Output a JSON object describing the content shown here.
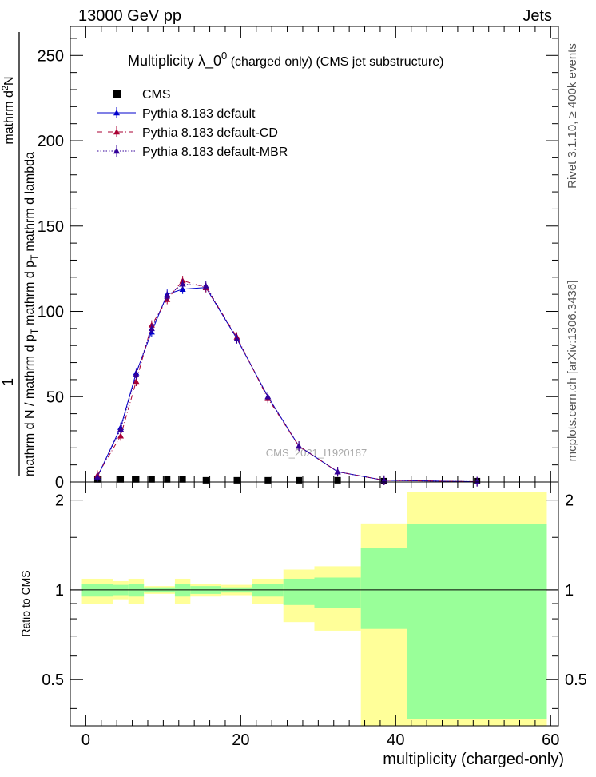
{
  "header": {
    "energy_label": "13000 GeV pp",
    "process_label": "Jets"
  },
  "side_labels": {
    "rivet": "Rivet 3.1.10, ≥ 400k events",
    "mcplots": "mcplots.cern.ch [arXiv:1306.3436]"
  },
  "watermark": "CMS_2021_I1920187",
  "chart_data": [
    {
      "type": "line",
      "panel": "main",
      "title_main": "Multiplicity  λ_0",
      "title_sup": "0",
      "title_rest": " (charged only) (CMS jet substructure)",
      "ylabel_num": "1",
      "ylabel_den_part1": "mathrm d N / mathrm d p",
      "ylabel_den_part2": "mathrm d p",
      "ylabel_den_part3": "mathrm d lambda",
      "ylabel_num_part1": "mathrm d",
      "ylabel_num_part2": "N",
      "ylabel_sub": "T",
      "ylabel_sup": "2",
      "xlim": [
        -2,
        61
      ],
      "ylim": [
        0,
        267
      ],
      "yticks": [
        0,
        50,
        100,
        150,
        200,
        250
      ],
      "ytick_labels": [
        "0",
        "50",
        "100",
        "150",
        "200",
        "250"
      ],
      "legend": [
        {
          "name": "CMS",
          "color": "#000000",
          "marker": "square",
          "line": "none"
        },
        {
          "name": "Pythia 8.183 default",
          "color": "#0000cc",
          "marker": "triangle",
          "line": "solid"
        },
        {
          "name": "Pythia 8.183 default-CD",
          "color": "#aa0033",
          "marker": "triangle",
          "line": "dashdot"
        },
        {
          "name": "Pythia 8.183 default-MBR",
          "color": "#330099",
          "marker": "triangle",
          "line": "dotted"
        }
      ],
      "series": [
        {
          "name": "CMS",
          "x": [
            1.5,
            4.5,
            6.5,
            8.5,
            10.5,
            12.5,
            15.5,
            19.5,
            23.5,
            27.5,
            32.5,
            38.5,
            50.5
          ],
          "y": [
            1.5,
            1.5,
            1.5,
            1.5,
            1.5,
            1.5,
            1.0,
            1.0,
            1.0,
            1.0,
            1.0,
            0.5,
            0.5
          ]
        },
        {
          "name": "Pythia 8.183 default",
          "x": [
            1.5,
            4.5,
            6.5,
            8.5,
            10.5,
            12.5,
            15.5,
            19.5,
            23.5,
            27.5,
            32.5,
            38.5,
            50.5
          ],
          "y": [
            3,
            32,
            64,
            88,
            110,
            113,
            114,
            84,
            50,
            21,
            6,
            1,
            0.2
          ]
        },
        {
          "name": "Pythia 8.183 default-CD",
          "x": [
            1.5,
            4.5,
            6.5,
            8.5,
            10.5,
            12.5,
            15.5,
            19.5,
            23.5,
            27.5,
            32.5,
            38.5,
            50.5
          ],
          "y": [
            4,
            27,
            59,
            92,
            107,
            118,
            114,
            85,
            49,
            21,
            6,
            1,
            0.2
          ]
        },
        {
          "name": "Pythia 8.183 default-MBR",
          "x": [
            1.5,
            4.5,
            6.5,
            8.5,
            10.5,
            12.5,
            15.5,
            19.5,
            23.5,
            27.5,
            32.5,
            38.5,
            50.5
          ],
          "y": [
            3,
            31,
            63,
            90,
            109,
            116,
            115,
            84,
            50,
            21,
            6,
            1,
            0.2
          ]
        }
      ]
    },
    {
      "type": "area",
      "panel": "ratio",
      "ylabel": "Ratio to CMS",
      "xlabel": "multiplicity (charged-only)",
      "xlim": [
        -2,
        61
      ],
      "ylim": [
        0.35,
        2.3
      ],
      "yticks": [
        0.5,
        1,
        2
      ],
      "ytick_labels": [
        "0.5",
        "1",
        "2"
      ],
      "xticks": [
        0,
        20,
        40,
        60
      ],
      "xtick_labels": [
        "0",
        "20",
        "40",
        "60"
      ],
      "bins": [
        {
          "lo": -0.5,
          "hi": 3.5,
          "yellow": [
            0.9,
            1.09
          ],
          "green": [
            0.95,
            1.05
          ]
        },
        {
          "lo": 3.5,
          "hi": 5.5,
          "yellow": [
            0.93,
            1.07
          ],
          "green": [
            0.96,
            1.04
          ]
        },
        {
          "lo": 5.5,
          "hi": 7.5,
          "yellow": [
            0.9,
            1.09
          ],
          "green": [
            0.95,
            1.05
          ]
        },
        {
          "lo": 7.5,
          "hi": 11.5,
          "yellow": [
            0.97,
            1.03
          ],
          "green": [
            0.98,
            1.02
          ]
        },
        {
          "lo": 11.5,
          "hi": 13.5,
          "yellow": [
            0.9,
            1.09
          ],
          "green": [
            0.95,
            1.05
          ]
        },
        {
          "lo": 13.5,
          "hi": 17.5,
          "yellow": [
            0.95,
            1.05
          ],
          "green": [
            0.97,
            1.03
          ]
        },
        {
          "lo": 17.5,
          "hi": 21.5,
          "yellow": [
            0.96,
            1.04
          ],
          "green": [
            0.98,
            1.02
          ]
        },
        {
          "lo": 21.5,
          "hi": 25.5,
          "yellow": [
            0.9,
            1.09
          ],
          "green": [
            0.95,
            1.05
          ]
        },
        {
          "lo": 25.5,
          "hi": 29.5,
          "yellow": [
            0.78,
            1.17
          ],
          "green": [
            0.89,
            1.09
          ]
        },
        {
          "lo": 29.5,
          "hi": 35.5,
          "yellow": [
            0.73,
            1.2
          ],
          "green": [
            0.87,
            1.1
          ]
        },
        {
          "lo": 35.5,
          "hi": 41.5,
          "yellow": [
            0.35,
            1.67
          ],
          "green": [
            0.74,
            1.38
          ]
        },
        {
          "lo": 41.5,
          "hi": 59.5,
          "yellow": [
            0.35,
            2.13
          ],
          "green": [
            0.37,
            1.66
          ]
        }
      ]
    }
  ]
}
